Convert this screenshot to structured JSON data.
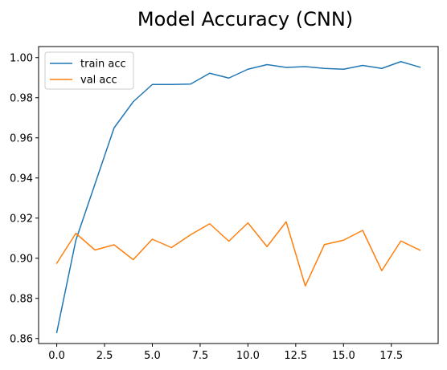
{
  "chart_data": {
    "type": "line",
    "title": "Model Accuracy (CNN)",
    "xlabel": "",
    "ylabel": "",
    "xlim": [
      -0.95,
      19.95
    ],
    "ylim": [
      0.8575,
      1.0055
    ],
    "xticks": [
      0,
      2.5,
      5,
      7.5,
      10,
      12.5,
      15,
      17.5
    ],
    "xtick_labels": [
      "0.0",
      "2.5",
      "5.0",
      "7.5",
      "10.0",
      "12.5",
      "15.0",
      "17.5"
    ],
    "yticks": [
      0.86,
      0.88,
      0.9,
      0.92,
      0.94,
      0.96,
      0.98,
      1.0
    ],
    "ytick_labels": [
      "0.86",
      "0.88",
      "0.90",
      "0.92",
      "0.94",
      "0.96",
      "0.98",
      "1.00"
    ],
    "grid": false,
    "legend_position": "top-left",
    "x": [
      0,
      1,
      2,
      3,
      4,
      5,
      6,
      7,
      8,
      9,
      10,
      11,
      12,
      13,
      14,
      15,
      16,
      17,
      18,
      19
    ],
    "series": [
      {
        "name": "train acc",
        "color": "#1f77b4",
        "values": [
          0.863,
          0.909,
          0.937,
          0.965,
          0.978,
          0.9866,
          0.9866,
          0.9868,
          0.9922,
          0.9898,
          0.9942,
          0.9965,
          0.9951,
          0.9955,
          0.9946,
          0.9942,
          0.9961,
          0.9946,
          0.998,
          0.9952
        ]
      },
      {
        "name": "val acc",
        "color": "#ff7f0e",
        "values": [
          0.8975,
          0.9124,
          0.9041,
          0.9067,
          0.8993,
          0.9095,
          0.9053,
          0.9117,
          0.9172,
          0.9085,
          0.9176,
          0.9058,
          0.9182,
          0.8862,
          0.9068,
          0.909,
          0.9139,
          0.8938,
          0.9086,
          0.904
        ]
      }
    ]
  }
}
